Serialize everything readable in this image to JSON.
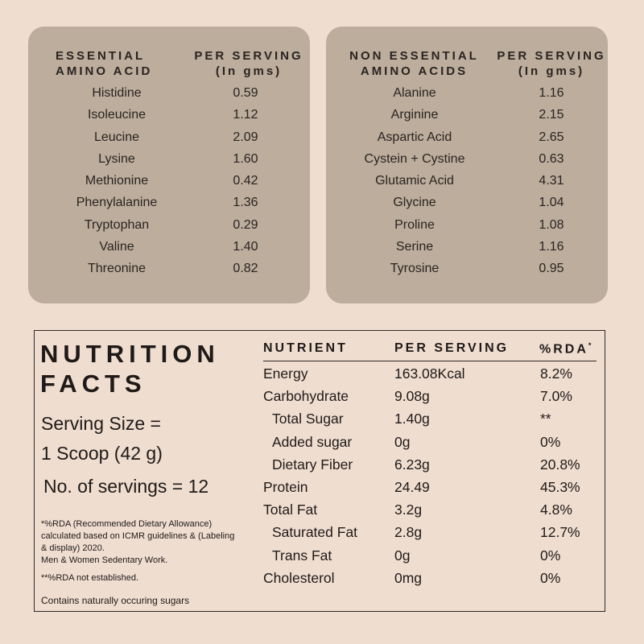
{
  "essential": {
    "col1": [
      "ESSENTIAL",
      "AMINO ACID"
    ],
    "col2": [
      "PER SERVING",
      "(In gms)"
    ],
    "rows": [
      {
        "name": "Histidine",
        "value": "0.59"
      },
      {
        "name": "Isoleucine",
        "value": "1.12"
      },
      {
        "name": "Leucine",
        "value": "2.09"
      },
      {
        "name": "Lysine",
        "value": "1.60"
      },
      {
        "name": "Methionine",
        "value": "0.42"
      },
      {
        "name": "Phenylalanine",
        "value": "1.36"
      },
      {
        "name": "Tryptophan",
        "value": "0.29"
      },
      {
        "name": "Valine",
        "value": "1.40"
      },
      {
        "name": "Threonine",
        "value": "0.82"
      }
    ]
  },
  "non_essential": {
    "col1": [
      "NON ESSENTIAL",
      "AMINO ACIDS"
    ],
    "col2": [
      "PER SERVING",
      "(In gms)"
    ],
    "rows": [
      {
        "name": "Alanine",
        "value": "1.16"
      },
      {
        "name": "Arginine",
        "value": "2.15"
      },
      {
        "name": "Aspartic Acid",
        "value": "2.65"
      },
      {
        "name": "Cystein + Cystine",
        "value": "0.63"
      },
      {
        "name": "Glutamic Acid",
        "value": "4.31"
      },
      {
        "name": "Glycine",
        "value": "1.04"
      },
      {
        "name": "Proline",
        "value": "1.08"
      },
      {
        "name": "Serine",
        "value": "1.16"
      },
      {
        "name": "Tyrosine",
        "value": "0.95"
      }
    ]
  },
  "nutrition": {
    "title": [
      "NUTRITION",
      "FACTS"
    ],
    "serving_size": [
      "Serving Size =",
      "1 Scoop (42 g)"
    ],
    "servings": "No. of servings = 12",
    "footnote1": "*%RDA (Recommended Dietary Allowance) calculated based on ICMR guidelines & (Labeling & display) 2020.",
    "footnote1b": "Men & Women Sedentary Work.",
    "footnote2": "**%RDA not established.",
    "footnote3": "Contains naturally occuring sugars",
    "headers": {
      "nutrient": "NUTRIENT",
      "per_serving": "PER SERVING",
      "rda": "%RDA",
      "rda_mark": "*"
    },
    "rows": [
      {
        "name": "Energy",
        "per": "163.08Kcal",
        "rda": "8.2%",
        "sub": false
      },
      {
        "name": "Carbohydrate",
        "per": "9.08g",
        "rda": "7.0%",
        "sub": false
      },
      {
        "name": "Total Sugar",
        "per": "1.40g",
        "rda": "**",
        "sub": true
      },
      {
        "name": "Added sugar",
        "per": "0g",
        "rda": "0%",
        "sub": true
      },
      {
        "name": "Dietary Fiber",
        "per": "6.23g",
        "rda": "20.8%",
        "sub": true
      },
      {
        "name": "Protein",
        "per": "24.49",
        "rda": "45.3%",
        "sub": false
      },
      {
        "name": "Total Fat",
        "per": "3.2g",
        "rda": "4.8%",
        "sub": false
      },
      {
        "name": "Saturated Fat",
        "per": "2.8g",
        "rda": "12.7%",
        "sub": true
      },
      {
        "name": "Trans Fat",
        "per": "0g",
        "rda": "0%",
        "sub": true
      },
      {
        "name": "Cholesterol",
        "per": "0mg",
        "rda": "0%",
        "sub": false
      }
    ]
  }
}
